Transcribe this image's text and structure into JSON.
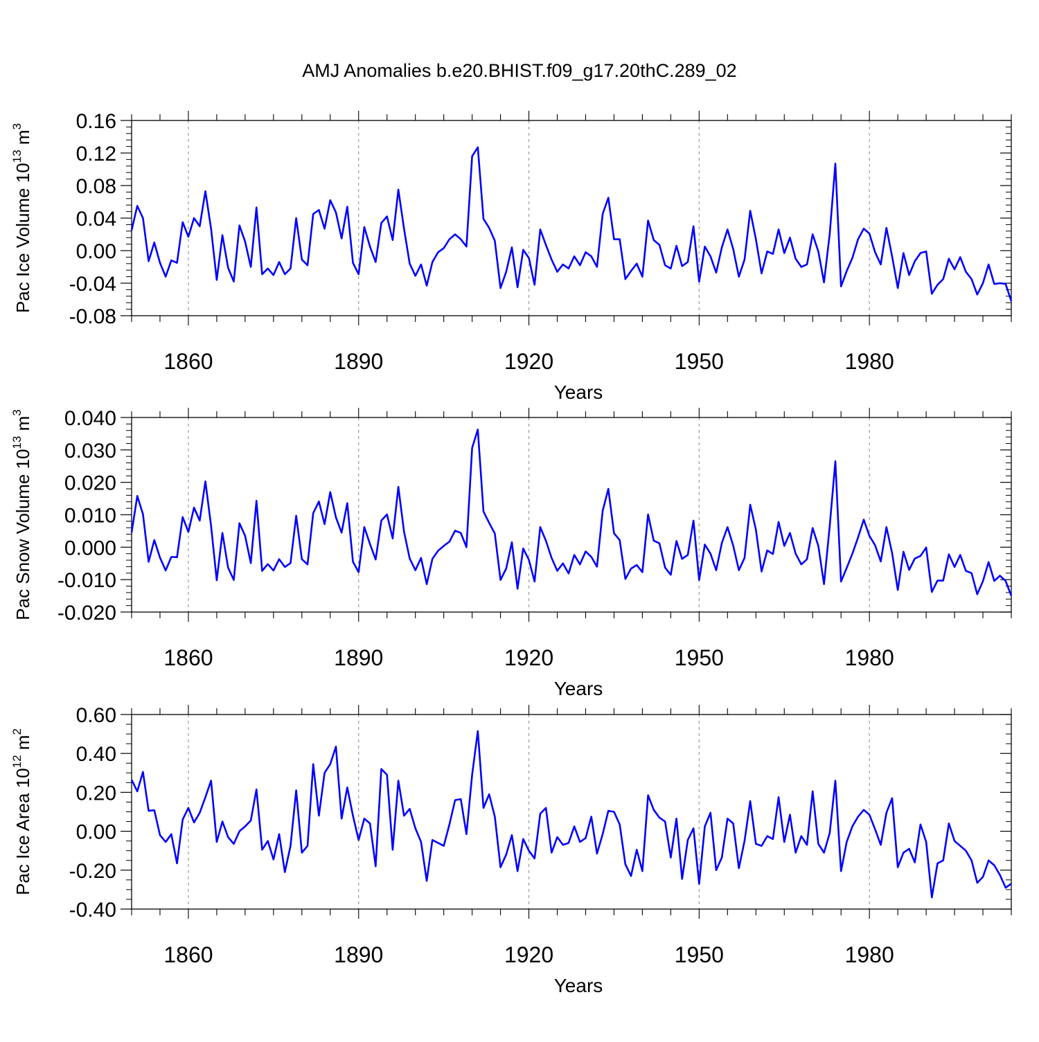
{
  "title": "AMJ Anomalies b.e20.BHIST.f09_g17.20thC.289_02",
  "line_color": "#0000ff",
  "chart_data": [
    {
      "type": "line",
      "ylabel_text": "Pac Ice Volume 10",
      "ylabel_exp": "13",
      "ylabel_unit": " m",
      "ylabel_unit_exp": "3",
      "xlabel": "Years",
      "xlim": [
        1850,
        2005
      ],
      "ylim": [
        -0.08,
        0.16
      ],
      "yticks": [
        -0.08,
        -0.04,
        0.0,
        0.04,
        0.08,
        0.12,
        0.16
      ],
      "ytick_labels": [
        "-0.08",
        "-0.04",
        "0.00",
        "0.04",
        "0.08",
        "0.12",
        "0.16"
      ],
      "xticks": [
        1860,
        1890,
        1920,
        1950,
        1980
      ],
      "xtick_labels": [
        "1860",
        "1890",
        "1920",
        "1950",
        "1980"
      ],
      "x_start": 1850,
      "values": [
        0.025,
        0.055,
        0.04,
        -0.013,
        0.01,
        -0.015,
        -0.032,
        -0.012,
        -0.015,
        0.035,
        0.017,
        0.04,
        0.03,
        0.073,
        0.027,
        -0.036,
        0.019,
        -0.021,
        -0.038,
        0.031,
        0.011,
        -0.02,
        0.053,
        -0.029,
        -0.022,
        -0.03,
        -0.014,
        -0.029,
        -0.022,
        0.04,
        -0.011,
        -0.018,
        0.045,
        0.05,
        0.027,
        0.062,
        0.047,
        0.015,
        0.054,
        -0.015,
        -0.029,
        0.029,
        0.005,
        -0.014,
        0.034,
        0.042,
        0.013,
        0.075,
        0.027,
        -0.016,
        -0.031,
        -0.017,
        -0.043,
        -0.014,
        -0.002,
        0.003,
        0.014,
        0.02,
        0.014,
        0.005,
        0.116,
        0.127,
        0.039,
        0.028,
        0.012,
        -0.046,
        -0.026,
        0.004,
        -0.045,
        0.001,
        -0.009,
        -0.042,
        0.026,
        0.007,
        -0.011,
        -0.026,
        -0.017,
        -0.022,
        -0.007,
        -0.018,
        -0.002,
        -0.007,
        -0.02,
        0.045,
        0.065,
        0.014,
        0.014,
        -0.035,
        -0.025,
        -0.016,
        -0.032,
        0.037,
        0.013,
        0.007,
        -0.018,
        -0.022,
        0.006,
        -0.019,
        -0.014,
        0.03,
        -0.038,
        0.005,
        -0.007,
        -0.027,
        0.004,
        0.026,
        0.002,
        -0.032,
        -0.011,
        0.049,
        0.014,
        -0.028,
        -0.001,
        -0.004,
        0.026,
        -0.003,
        0.016,
        -0.01,
        -0.02,
        -0.017,
        0.02,
        -0.001,
        -0.039,
        0.02,
        0.107,
        -0.044,
        -0.025,
        -0.009,
        0.014,
        0.027,
        0.021,
        -0.002,
        -0.017,
        0.028,
        -0.007,
        -0.046,
        -0.003,
        -0.03,
        -0.013,
        -0.003,
        -0.001,
        -0.053,
        -0.042,
        -0.035,
        -0.01,
        -0.023,
        -0.008,
        -0.026,
        -0.035,
        -0.054,
        -0.04,
        -0.017,
        -0.041,
        -0.04,
        -0.041,
        -0.062
      ]
    },
    {
      "type": "line",
      "ylabel_text": "Pac Snow Volume 10",
      "ylabel_exp": "13",
      "ylabel_unit": " m",
      "ylabel_unit_exp": "3",
      "xlabel": "Years",
      "xlim": [
        1850,
        2005
      ],
      "ylim": [
        -0.02,
        0.04
      ],
      "yticks": [
        -0.02,
        -0.01,
        0.0,
        0.01,
        0.02,
        0.03,
        0.04
      ],
      "ytick_labels": [
        "-0.020",
        "-0.010",
        "0.000",
        "0.010",
        "0.020",
        "0.030",
        "0.040"
      ],
      "xticks": [
        1860,
        1890,
        1920,
        1950,
        1980
      ],
      "xtick_labels": [
        "1860",
        "1890",
        "1920",
        "1950",
        "1980"
      ],
      "x_start": 1850,
      "values": [
        0.0045,
        0.0158,
        0.0102,
        -0.0045,
        0.0022,
        -0.0032,
        -0.0072,
        -0.003,
        -0.0031,
        0.0093,
        0.0047,
        0.0122,
        0.0082,
        0.0203,
        0.0066,
        -0.0102,
        0.0044,
        -0.0063,
        -0.0101,
        0.0074,
        0.0035,
        -0.0049,
        0.0143,
        -0.0073,
        -0.0052,
        -0.0072,
        -0.0037,
        -0.0061,
        -0.0049,
        0.0097,
        -0.0037,
        -0.0053,
        0.0105,
        0.0141,
        0.0071,
        0.017,
        0.0092,
        0.0045,
        0.0136,
        -0.0045,
        -0.0077,
        0.0062,
        0.001,
        -0.0038,
        0.0082,
        0.0101,
        0.0027,
        0.0186,
        0.0048,
        -0.0035,
        -0.0071,
        -0.0033,
        -0.0114,
        -0.0036,
        -0.0011,
        0.0004,
        0.0017,
        0.0051,
        0.0044,
        0.0,
        0.0306,
        0.0363,
        0.011,
        0.0075,
        0.0042,
        -0.0101,
        -0.0066,
        0.0015,
        -0.0128,
        -0.0004,
        -0.0039,
        -0.0106,
        0.0062,
        0.002,
        -0.0033,
        -0.0073,
        -0.005,
        -0.0081,
        -0.0024,
        -0.0053,
        -0.0013,
        -0.003,
        -0.006,
        0.0112,
        0.018,
        0.0043,
        0.0022,
        -0.0098,
        -0.0066,
        -0.0055,
        -0.0077,
        0.0101,
        0.002,
        0.0012,
        -0.0063,
        -0.0085,
        0.0019,
        -0.0036,
        -0.0024,
        0.0082,
        -0.0101,
        0.0008,
        -0.002,
        -0.0071,
        0.0013,
        0.0062,
        0.0005,
        -0.0071,
        -0.0033,
        0.0131,
        0.0054,
        -0.0075,
        -0.001,
        -0.0021,
        0.0078,
        0.0004,
        0.0044,
        -0.002,
        -0.0053,
        -0.0037,
        0.0059,
        0.0004,
        -0.0114,
        0.0064,
        0.0265,
        -0.0106,
        -0.0064,
        -0.002,
        0.003,
        0.0085,
        0.0035,
        0.0006,
        -0.0044,
        0.0062,
        -0.0018,
        -0.0132,
        -0.0014,
        -0.007,
        -0.0035,
        -0.0027,
        -0.0001,
        -0.0138,
        -0.0103,
        -0.0103,
        -0.0022,
        -0.0061,
        -0.0024,
        -0.0073,
        -0.008,
        -0.0145,
        -0.0105,
        -0.0046,
        -0.0104,
        -0.0088,
        -0.0104,
        -0.015
      ]
    },
    {
      "type": "line",
      "ylabel_text": "Pac Ice Area 10",
      "ylabel_exp": "12",
      "ylabel_unit": " m",
      "ylabel_unit_exp": "2",
      "xlabel": "Years",
      "xlim": [
        1850,
        2005
      ],
      "ylim": [
        -0.4,
        0.6
      ],
      "yticks": [
        -0.4,
        -0.2,
        0.0,
        0.2,
        0.4,
        0.6
      ],
      "ytick_labels": [
        "-0.40",
        "-0.20",
        "0.00",
        "0.20",
        "0.40",
        "0.60"
      ],
      "xticks": [
        1860,
        1890,
        1920,
        1950,
        1980
      ],
      "xtick_labels": [
        "1860",
        "1890",
        "1920",
        "1950",
        "1980"
      ],
      "x_start": 1850,
      "values": [
        0.265,
        0.205,
        0.305,
        0.105,
        0.108,
        -0.02,
        -0.055,
        -0.015,
        -0.165,
        0.06,
        0.12,
        0.045,
        0.095,
        0.175,
        0.26,
        -0.055,
        0.05,
        -0.03,
        -0.065,
        0.0,
        0.025,
        0.055,
        0.215,
        -0.095,
        -0.05,
        -0.145,
        -0.015,
        -0.21,
        -0.075,
        0.21,
        -0.11,
        -0.075,
        0.345,
        0.08,
        0.3,
        0.345,
        0.435,
        0.065,
        0.225,
        0.08,
        -0.045,
        0.065,
        0.04,
        -0.18,
        0.32,
        0.29,
        -0.095,
        0.26,
        0.08,
        0.115,
        0.015,
        -0.055,
        -0.255,
        -0.045,
        -0.06,
        -0.075,
        0.035,
        0.16,
        0.165,
        -0.015,
        0.29,
        0.515,
        0.12,
        0.19,
        0.075,
        -0.185,
        -0.12,
        -0.02,
        -0.205,
        -0.04,
        -0.1,
        -0.14,
        0.09,
        0.12,
        -0.11,
        -0.03,
        -0.07,
        -0.06,
        0.025,
        -0.055,
        -0.035,
        0.075,
        -0.115,
        -0.015,
        0.105,
        0.1,
        0.035,
        -0.17,
        -0.23,
        -0.095,
        -0.205,
        0.185,
        0.11,
        0.07,
        0.05,
        -0.135,
        0.065,
        -0.245,
        -0.045,
        0.015,
        -0.27,
        0.025,
        0.095,
        -0.2,
        -0.135,
        0.065,
        0.04,
        -0.19,
        -0.05,
        0.155,
        -0.065,
        -0.075,
        -0.025,
        -0.04,
        0.175,
        -0.055,
        0.085,
        -0.11,
        -0.025,
        -0.07,
        0.205,
        -0.065,
        -0.11,
        -0.01,
        0.26,
        -0.205,
        -0.055,
        0.025,
        0.075,
        0.11,
        0.085,
        0.01,
        -0.07,
        0.095,
        0.17,
        -0.185,
        -0.11,
        -0.09,
        -0.16,
        0.035,
        -0.055,
        -0.34,
        -0.165,
        -0.15,
        0.04,
        -0.05,
        -0.075,
        -0.1,
        -0.15,
        -0.265,
        -0.235,
        -0.15,
        -0.175,
        -0.225,
        -0.29,
        -0.27
      ]
    }
  ]
}
